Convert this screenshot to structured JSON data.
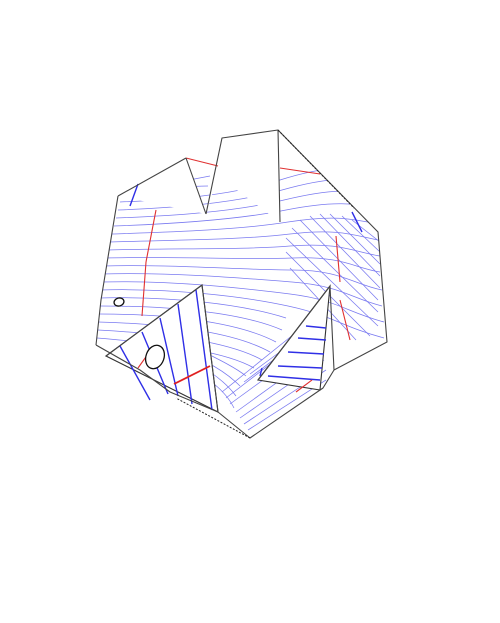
{
  "figure": {
    "kind": "folded-paper-contour-diagram",
    "colors": {
      "background": "#ffffff",
      "outline": "#444444",
      "contour": "#7a7af0",
      "fold_line": "#2f2fe6",
      "cut_line": "#e03030",
      "hole_stroke": "#111111"
    },
    "holes": 2
  }
}
